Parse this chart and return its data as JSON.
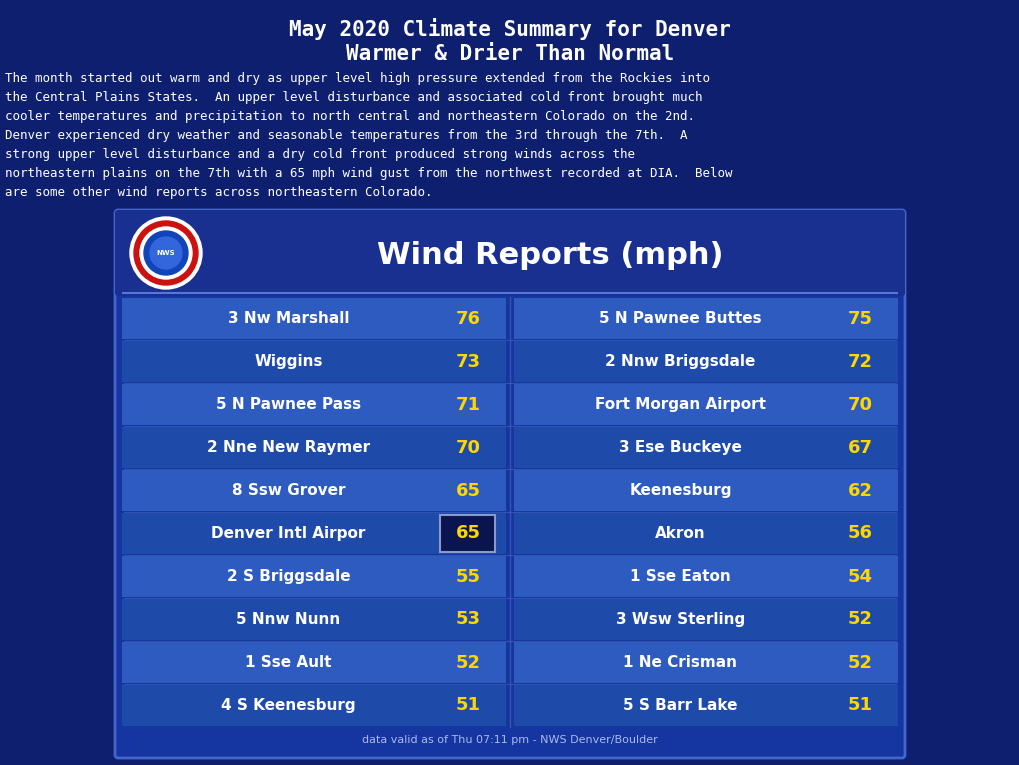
{
  "title_line1": "May 2020 Climate Summary for Denver",
  "title_line2": "Warmer & Drier Than Normal",
  "bg_color": "#0d1f6e",
  "title_color": "#ffffff",
  "body_lines": [
    "The month started out warm and dry as upper level high pressure extended from the Rockies into",
    "the Central Plains States.  An upper level disturbance and associated cold front brought much",
    "cooler temperatures and precipitation to north central and northeastern Colorado on the 2nd.",
    "Denver experienced dry weather and seasonable temperatures from the 3rd through the 7th.  A",
    "strong upper level disturbance and a dry cold front produced strong winds across the",
    "northeastern plains on the 7th with a 65 mph wind gust from the northwest recorded at DIA.  Below",
    "are some other wind reports across northeastern Colorado."
  ],
  "table_title": "Wind Reports (mph)",
  "table_outer_bg": "#1535a0",
  "table_header_bg": "#1a3090",
  "row_colors": [
    "#2d5bbf",
    "#1e4aaa"
  ],
  "left_locations": [
    "3 Nw Marshall",
    "Wiggins",
    "5 N Pawnee Pass",
    "2 Nne New Raymer",
    "8 Ssw Grover",
    "Denver Intl Airpor",
    "2 S Briggsdale",
    "5 Nnw Nunn",
    "1 Sse Ault",
    "4 S Keenesburg"
  ],
  "left_values": [
    76,
    73,
    71,
    70,
    65,
    65,
    55,
    53,
    52,
    51
  ],
  "right_locations": [
    "5 N Pawnee Buttes",
    "2 Nnw Briggsdale",
    "Fort Morgan Airport",
    "3 Ese Buckeye",
    "Keenesburg",
    "Akron",
    "1 Sse Eaton",
    "3 Wsw Sterling",
    "1 Ne Crisman",
    "5 S Barr Lake"
  ],
  "right_values": [
    75,
    72,
    70,
    67,
    62,
    56,
    54,
    52,
    52,
    51
  ],
  "highlight_row": 5,
  "value_color": "#ffd700",
  "location_color": "#ffffff",
  "footer_text": "data valid as of Thu 07:11 pm - NWS Denver/Boulder",
  "footer_color": "#aabbee",
  "title_fontsize": 15,
  "subtitle_fontsize": 14,
  "body_fontsize": 9,
  "table_title_fontsize": 22,
  "row_fontsize": 11,
  "val_fontsize": 13
}
